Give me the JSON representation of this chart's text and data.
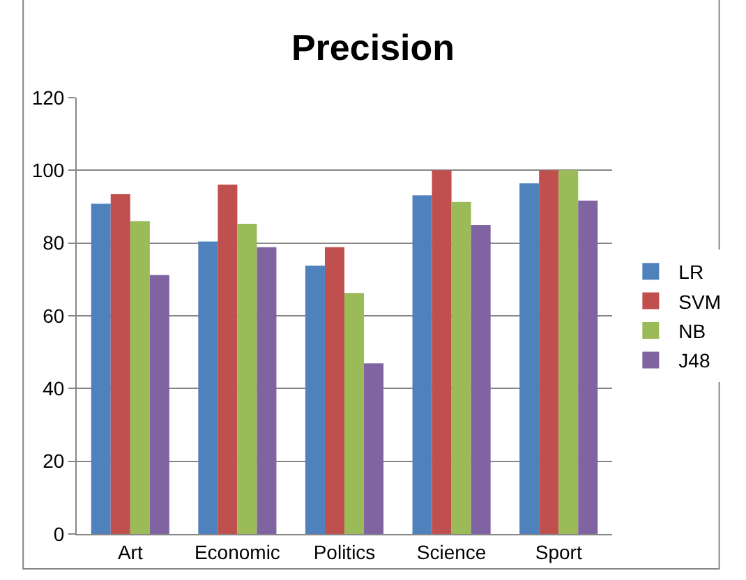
{
  "chart_data": {
    "type": "bar",
    "title": "Precision",
    "categories": [
      "Art",
      "Economic",
      "Politics",
      "Science",
      "Sport"
    ],
    "series": [
      {
        "name": "LR",
        "color": "#4f81bd",
        "values": [
          90.8,
          80.4,
          73.8,
          93.1,
          96.4
        ]
      },
      {
        "name": "SVM",
        "color": "#c0504d",
        "values": [
          93.5,
          96.1,
          78.9,
          100,
          100
        ]
      },
      {
        "name": "NB",
        "color": "#9bbb59",
        "values": [
          86,
          85.3,
          66.3,
          91.3,
          100
        ]
      },
      {
        "name": "J48",
        "color": "#8064a2",
        "values": [
          71.2,
          78.9,
          46.9,
          84.9,
          91.7
        ]
      }
    ],
    "ylim": [
      0,
      120
    ],
    "yticks": [
      0,
      20,
      40,
      60,
      80,
      100,
      120
    ],
    "grid": "y",
    "legend": "right"
  }
}
